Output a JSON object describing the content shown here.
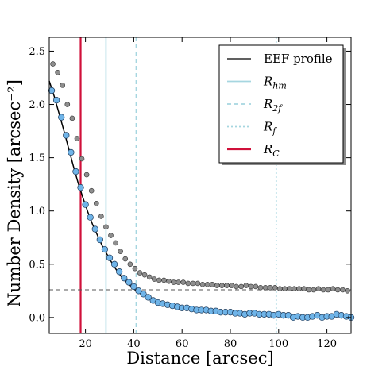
{
  "chart_data": {
    "type": "scatter",
    "xlabel": "Distance [arcsec]",
    "ylabel": "Number Density [arcsec⁻²]",
    "xlim": [
      5,
      130
    ],
    "ylim": [
      -0.15,
      2.63
    ],
    "xticks": [
      "20",
      "40",
      "60",
      "80",
      "100",
      "120"
    ],
    "yticks": [
      "0.0",
      "0.5",
      "1.0",
      "1.5",
      "2.0",
      "2.5"
    ],
    "xtick_values": [
      20,
      40,
      60,
      80,
      100,
      120
    ],
    "ytick_values": [
      0.0,
      0.5,
      1.0,
      1.5,
      2.0,
      2.5
    ],
    "background_level": 0.26,
    "legend": {
      "placement": "top-right",
      "entries": [
        {
          "label": "EEF profile",
          "style": "solid",
          "color": "#000000"
        },
        {
          "label": "R_hm",
          "style": "solid",
          "color": "#a6d6e0"
        },
        {
          "label": "R_2f",
          "style": "dashed",
          "color": "#a6d6e0"
        },
        {
          "label": "R_f",
          "style": "dotted",
          "color": "#a6d6e0"
        },
        {
          "label": "R_C",
          "style": "solid",
          "color": "#d0103a"
        }
      ]
    },
    "vlines": [
      {
        "name": "R_hm",
        "x": 28.5,
        "color": "#a6d6e0",
        "style": "solid"
      },
      {
        "name": "R_2f",
        "x": 41,
        "color": "#a6d6e0",
        "style": "dashed"
      },
      {
        "name": "R_f",
        "x": 99,
        "color": "#a6d6e0",
        "style": "dotted"
      },
      {
        "name": "R_C",
        "x": 18,
        "color": "#d0103a",
        "style": "solid"
      }
    ],
    "series": [
      {
        "color": "#8e8e8e",
        "x": [
          6.5,
          8.5,
          10.5,
          12.5,
          14.5,
          16.5,
          18.5,
          20.5,
          22.5,
          24.5,
          26.5,
          28.5,
          30.5,
          32.5,
          34.5,
          36.5,
          38.5,
          40.5,
          42.5,
          44.5,
          46.5,
          48.5,
          50.5,
          52.5,
          54.5,
          56.5,
          58.5,
          60.5,
          62.5,
          64.5,
          66.5,
          68.5,
          70.5,
          72.5,
          74.5,
          76.5,
          78.5,
          80.5,
          82.5,
          84.5,
          86.5,
          88.5,
          90.5,
          92.5,
          94.5,
          96.5,
          98.5,
          100.5,
          102.5,
          104.5,
          106.5,
          108.5,
          110.5,
          112.5,
          114.5,
          116.5,
          118.5,
          120.5,
          122.5,
          124.5,
          126.5,
          128.5
        ],
        "y": [
          2.38,
          2.3,
          2.18,
          2.0,
          1.87,
          1.68,
          1.49,
          1.34,
          1.19,
          1.07,
          0.95,
          0.85,
          0.77,
          0.7,
          0.62,
          0.55,
          0.5,
          0.46,
          0.42,
          0.4,
          0.38,
          0.36,
          0.35,
          0.35,
          0.34,
          0.33,
          0.33,
          0.33,
          0.32,
          0.32,
          0.32,
          0.31,
          0.31,
          0.31,
          0.3,
          0.3,
          0.3,
          0.3,
          0.29,
          0.29,
          0.3,
          0.29,
          0.29,
          0.28,
          0.28,
          0.28,
          0.28,
          0.27,
          0.27,
          0.27,
          0.27,
          0.27,
          0.27,
          0.26,
          0.26,
          0.27,
          0.26,
          0.26,
          0.27,
          0.26,
          0.26,
          0.25
        ]
      },
      {
        "color": "#6fb4e8",
        "x": [
          6,
          8,
          10,
          12,
          14,
          16,
          18,
          20,
          22,
          24,
          26,
          28,
          30,
          32,
          34,
          36,
          38,
          40,
          42,
          44,
          46,
          48,
          50,
          52,
          54,
          56,
          58,
          60,
          62,
          64,
          66,
          68,
          70,
          72,
          74,
          76,
          78,
          80,
          82,
          84,
          86,
          88,
          90,
          92,
          94,
          96,
          98,
          100,
          102,
          104,
          106,
          108,
          110,
          112,
          114,
          116,
          118,
          120,
          122,
          124,
          126,
          128,
          130
        ],
        "y": [
          2.13,
          2.04,
          1.88,
          1.71,
          1.55,
          1.37,
          1.22,
          1.06,
          0.94,
          0.83,
          0.73,
          0.64,
          0.56,
          0.5,
          0.43,
          0.37,
          0.33,
          0.29,
          0.25,
          0.22,
          0.19,
          0.16,
          0.14,
          0.13,
          0.12,
          0.11,
          0.1,
          0.09,
          0.09,
          0.08,
          0.07,
          0.07,
          0.07,
          0.06,
          0.06,
          0.05,
          0.05,
          0.05,
          0.04,
          0.04,
          0.03,
          0.04,
          0.04,
          0.03,
          0.03,
          0.03,
          0.02,
          0.03,
          0.02,
          0.02,
          0.0,
          0.01,
          0.0,
          0.0,
          0.01,
          0.02,
          0.0,
          0.01,
          0.01,
          0.03,
          0.02,
          0.01,
          0.0
        ]
      }
    ],
    "eef_profile": {
      "color": "#000000",
      "x": [
        5,
        7,
        9,
        11,
        13,
        15,
        17,
        19,
        21,
        23,
        25,
        27,
        29,
        31,
        33,
        35,
        37,
        39,
        41,
        43,
        45,
        48,
        51,
        55,
        60,
        65,
        70,
        75,
        80,
        85,
        90,
        95,
        100,
        105,
        110,
        115,
        120,
        125,
        130
      ],
      "y": [
        2.22,
        2.08,
        1.92,
        1.76,
        1.59,
        1.42,
        1.26,
        1.12,
        0.99,
        0.87,
        0.77,
        0.67,
        0.59,
        0.51,
        0.44,
        0.38,
        0.33,
        0.29,
        0.25,
        0.22,
        0.19,
        0.16,
        0.14,
        0.12,
        0.1,
        0.09,
        0.08,
        0.07,
        0.06,
        0.05,
        0.04,
        0.03,
        0.03,
        0.02,
        0.02,
        0.01,
        0.01,
        0.01,
        0.01
      ]
    }
  }
}
